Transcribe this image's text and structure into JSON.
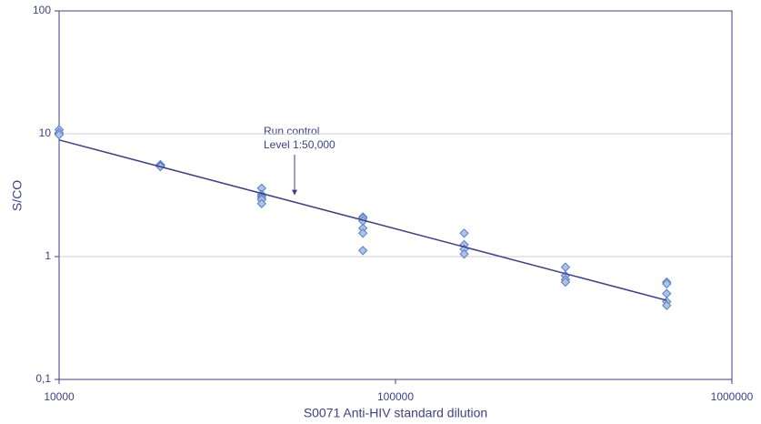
{
  "chart_data": {
    "type": "scatter",
    "xlabel": "S0071 Anti-HIV standard dilution",
    "ylabel": "S/CO",
    "annotation": [
      "Run control",
      "Level 1:50,000"
    ],
    "xscale": "log",
    "yscale": "log",
    "xlim": [
      10000,
      1000000
    ],
    "ylim": [
      0.1,
      100
    ],
    "xticks": [
      10000,
      100000,
      1000000
    ],
    "yticks": [
      {
        "value": 0.1,
        "label": "0,1"
      },
      1,
      10,
      100
    ],
    "grid": true,
    "series": [
      {
        "color": "#a9c3ea",
        "marker": "diamond",
        "x": [
          10000,
          10000,
          10000,
          20000,
          20000,
          20000,
          40000,
          40000,
          40000,
          40000,
          40000,
          40000,
          80000,
          80000,
          80000,
          80000,
          80000,
          80000,
          160000,
          160000,
          160000,
          160000,
          320000,
          320000,
          320000,
          320000,
          640000,
          640000,
          640000,
          640000,
          640000
        ],
        "values": [
          10.8,
          10.2,
          9.8,
          5.6,
          5.5,
          5.4,
          3.6,
          3.2,
          3.1,
          3.0,
          2.9,
          2.7,
          2.1,
          2.05,
          1.95,
          1.7,
          1.55,
          1.12,
          1.55,
          1.25,
          1.15,
          1.05,
          0.82,
          0.7,
          0.65,
          0.62,
          0.62,
          0.6,
          0.5,
          0.43,
          0.4
        ]
      },
      {
        "color": "#3c418c",
        "marker": "line",
        "x": [
          10000,
          640000
        ],
        "values": [
          8.9,
          0.44
        ]
      }
    ]
  }
}
